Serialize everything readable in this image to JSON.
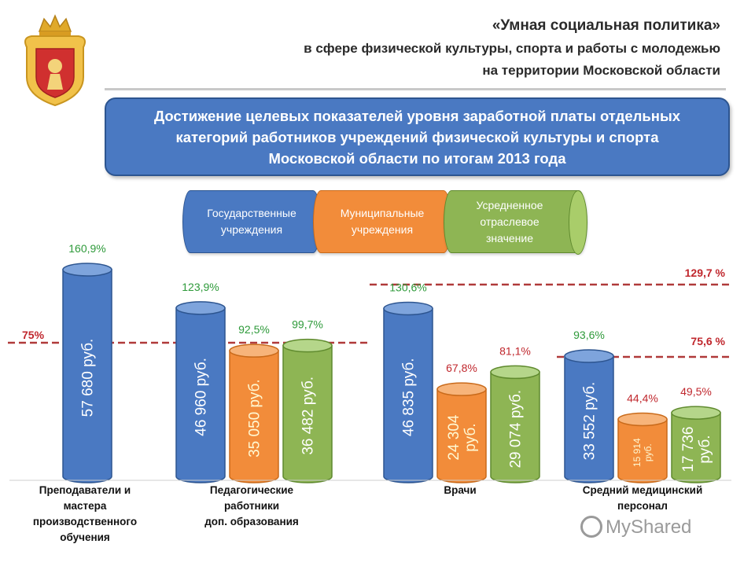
{
  "header": {
    "line1": "«Умная социальная политика»",
    "line2": "в сфере физической культуры, спорта и работы с молодежью",
    "line3": "на территории Московской области"
  },
  "title": {
    "line1": "Достижение целевых показателей уровня заработной платы отдельных",
    "line2": "категорий работников учреждений физической культуры и спорта",
    "line3": "Московской области по итогам 2013 года"
  },
  "legend": {
    "gov": [
      "Государственные",
      "учреждения"
    ],
    "mun": [
      "Муниципальные",
      "учреждения"
    ],
    "avg": [
      "Усредненное",
      "отраслевое",
      "значение"
    ]
  },
  "watermark": "MyShared",
  "colors": {
    "blue": "#4a79c2",
    "orange": "#f28c3a",
    "green": "#8eb554",
    "pct_green": "#2e9a3a",
    "pct_red": "#c0272d",
    "target_line": "#b03a3a"
  },
  "chart_data": {
    "type": "bar",
    "title": "Достижение целевых показателей уровня заработной платы отдельных категорий работников учреждений физической культуры и спорта Московской области по итогам 2013 года",
    "series_names": [
      "Государственные учреждения",
      "Муниципальные учреждения",
      "Усредненное отраслевое значение"
    ],
    "groups": [
      {
        "label": [
          "Преподаватели и",
          "мастера",
          "производственного",
          "обучения"
        ],
        "target": "75%",
        "target_value": 75,
        "bars": [
          {
            "series": "gov",
            "salary": "57 680 руб.",
            "salary_lines": [
              "57 680 руб."
            ],
            "salary_value": 57680,
            "percent": "160,9%",
            "percent_value": 160.9,
            "pct_color": "green"
          }
        ]
      },
      {
        "label": [
          "Педагогические",
          "работники",
          "доп. образования"
        ],
        "target": "",
        "bars": [
          {
            "series": "gov",
            "salary": "46 960 руб.",
            "salary_lines": [
              "46 960 руб."
            ],
            "salary_value": 46960,
            "percent": "123,9%",
            "percent_value": 123.9,
            "pct_color": "green"
          },
          {
            "series": "mun",
            "salary": "35 050 руб.",
            "salary_lines": [
              "35 050 руб."
            ],
            "salary_value": 35050,
            "percent": "92,5%",
            "percent_value": 92.5,
            "pct_color": "green"
          },
          {
            "series": "avg",
            "salary": "36 482 руб.",
            "salary_lines": [
              "36 482 руб."
            ],
            "salary_value": 36482,
            "percent": "99,7%",
            "percent_value": 99.7,
            "pct_color": "green"
          }
        ]
      },
      {
        "label": [
          "Врачи"
        ],
        "target": "129,7 %",
        "target_value": 129.7,
        "bars": [
          {
            "series": "gov",
            "salary": "46 835 руб.",
            "salary_lines": [
              "46 835 руб."
            ],
            "salary_value": 46835,
            "percent": "130,6%",
            "percent_value": 130.6,
            "pct_color": "green"
          },
          {
            "series": "mun",
            "salary": "24 304 руб.",
            "salary_lines": [
              "24 304",
              "руб."
            ],
            "salary_value": 24304,
            "percent": "67,8%",
            "percent_value": 67.8,
            "pct_color": "red"
          },
          {
            "series": "avg",
            "salary": "29 074 руб.",
            "salary_lines": [
              "29 074 руб."
            ],
            "salary_value": 29074,
            "percent": "81,1%",
            "percent_value": 81.1,
            "pct_color": "red"
          }
        ]
      },
      {
        "label": [
          "Средний медицинский",
          "персонал"
        ],
        "target": "75,6 %",
        "target_value": 75.6,
        "bars": [
          {
            "series": "gov",
            "salary": "33 552 руб.",
            "salary_lines": [
              "33 552 руб."
            ],
            "salary_value": 33552,
            "percent": "93,6%",
            "percent_value": 93.6,
            "pct_color": "green"
          },
          {
            "series": "mun",
            "salary": "15 914 руб.",
            "salary_lines": [
              "15 914",
              "руб."
            ],
            "salary_value": 15914,
            "percent": "44,4%",
            "percent_value": 44.4,
            "pct_color": "red"
          },
          {
            "series": "avg",
            "salary": "17 736 руб.",
            "salary_lines": [
              "17 736",
              "руб."
            ],
            "salary_value": 17736,
            "percent": "49,5%",
            "percent_value": 49.5,
            "pct_color": "red"
          }
        ]
      }
    ]
  }
}
